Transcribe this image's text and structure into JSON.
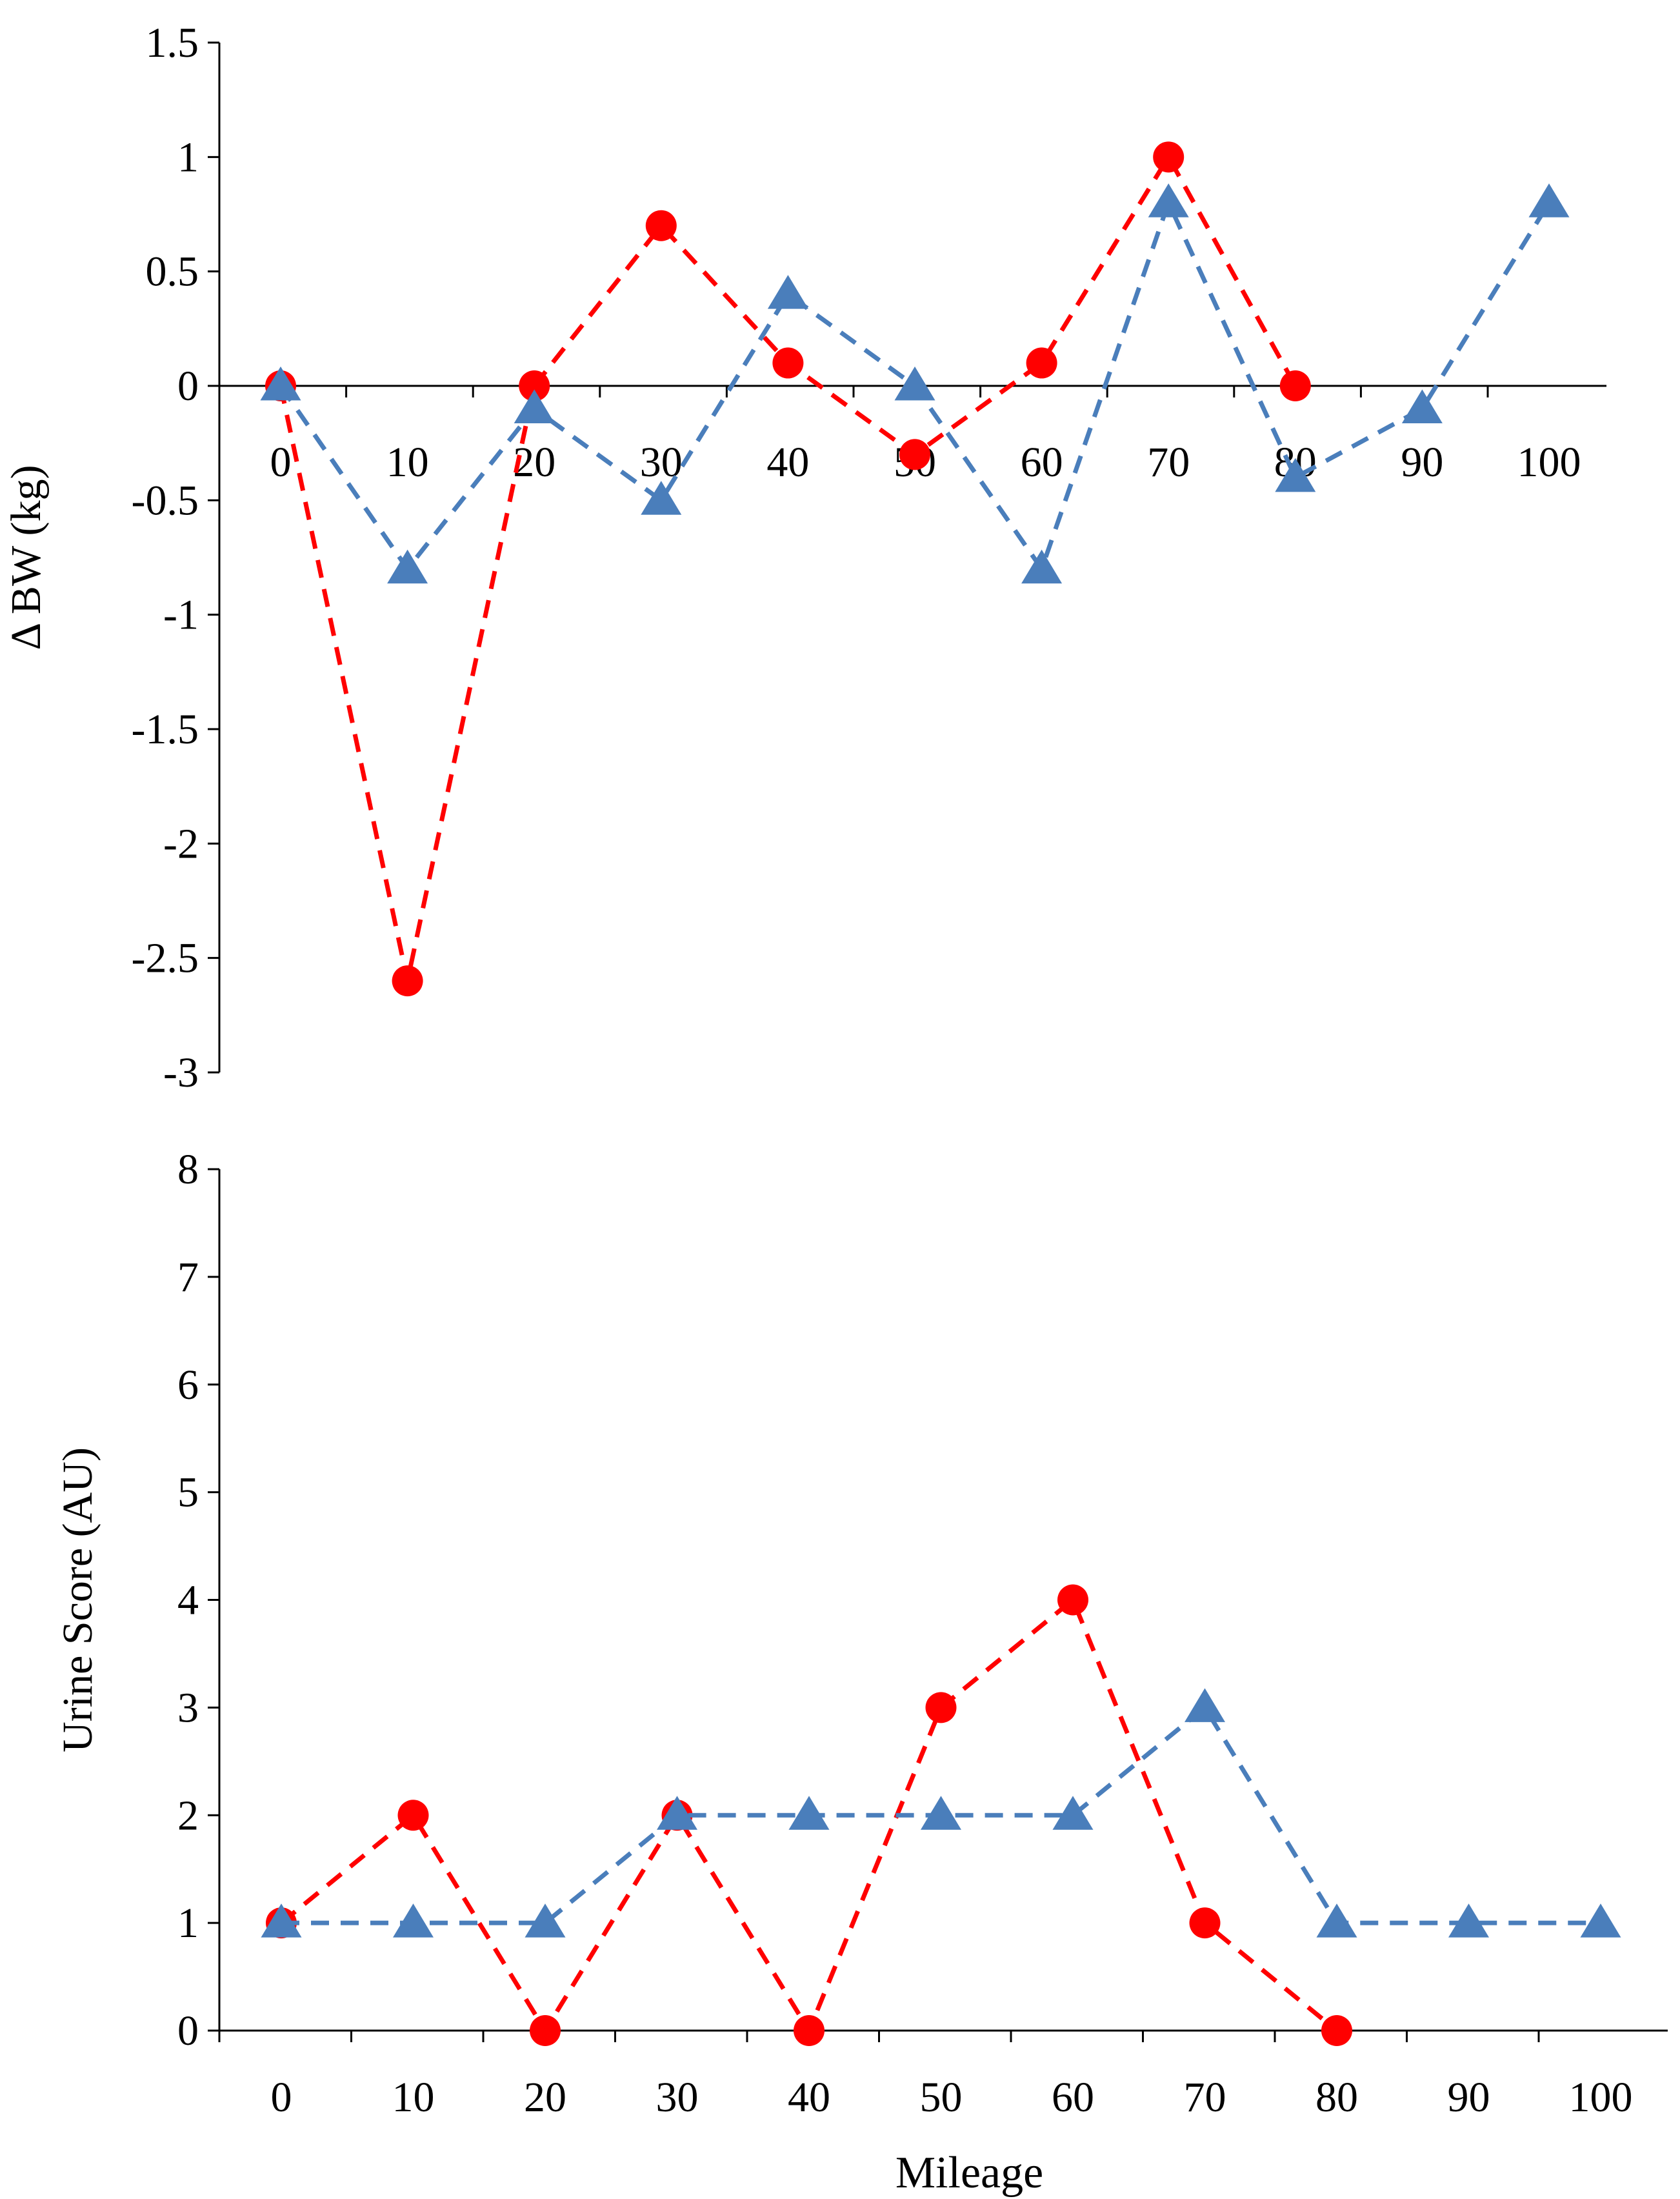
{
  "colors": {
    "series_red": "#ff0000",
    "series_blue": "#4a7ebb",
    "axis": "#000000"
  },
  "chart_data": [
    {
      "id": "top",
      "type": "line",
      "title": "",
      "xlabel": "",
      "ylabel": "Δ BW (kg)",
      "categories": [
        "0",
        "10",
        "20",
        "30",
        "40",
        "50",
        "60",
        "70",
        "80",
        "90",
        "100"
      ],
      "yticks": [
        "1.5",
        "1",
        "0.5",
        "0",
        "-0.5",
        "-1",
        "-1.5",
        "-2",
        "-2.5",
        "-3"
      ],
      "ylim": [
        -3,
        1.5
      ],
      "grid": false,
      "series": [
        {
          "name": "circle series",
          "marker": "circle",
          "color": "#ff0000",
          "x": [
            0,
            10,
            20,
            30,
            40,
            50,
            60,
            70,
            80
          ],
          "values": [
            0,
            -2.6,
            0,
            0.7,
            0.1,
            -0.3,
            0.1,
            1.0,
            0
          ]
        },
        {
          "name": "triangle series",
          "marker": "triangle",
          "color": "#4a7ebb",
          "x": [
            0,
            10,
            20,
            30,
            40,
            50,
            60,
            70,
            80,
            90,
            100
          ],
          "values": [
            0,
            -0.8,
            -0.1,
            -0.5,
            0.4,
            0,
            -0.8,
            0.8,
            -0.4,
            -0.1,
            0.8
          ]
        }
      ]
    },
    {
      "id": "bottom",
      "type": "line",
      "title": "",
      "xlabel": "Mileage",
      "ylabel": "Urine Score (AU)",
      "categories": [
        "0",
        "10",
        "20",
        "30",
        "40",
        "50",
        "60",
        "70",
        "80",
        "90",
        "100"
      ],
      "yticks": [
        "8",
        "7",
        "6",
        "5",
        "4",
        "3",
        "2",
        "1",
        "0"
      ],
      "ylim": [
        0,
        8
      ],
      "grid": false,
      "series": [
        {
          "name": "circle series",
          "marker": "circle",
          "color": "#ff0000",
          "x": [
            0,
            10,
            20,
            30,
            40,
            50,
            60,
            70,
            80
          ],
          "values": [
            1,
            2,
            0,
            2,
            0,
            3,
            4,
            1,
            0
          ]
        },
        {
          "name": "triangle series",
          "marker": "triangle",
          "color": "#4a7ebb",
          "x": [
            0,
            10,
            20,
            30,
            40,
            50,
            60,
            70,
            80,
            90,
            100
          ],
          "values": [
            1,
            1,
            1,
            2,
            2,
            2,
            2,
            3,
            1,
            1,
            1
          ]
        }
      ]
    }
  ]
}
